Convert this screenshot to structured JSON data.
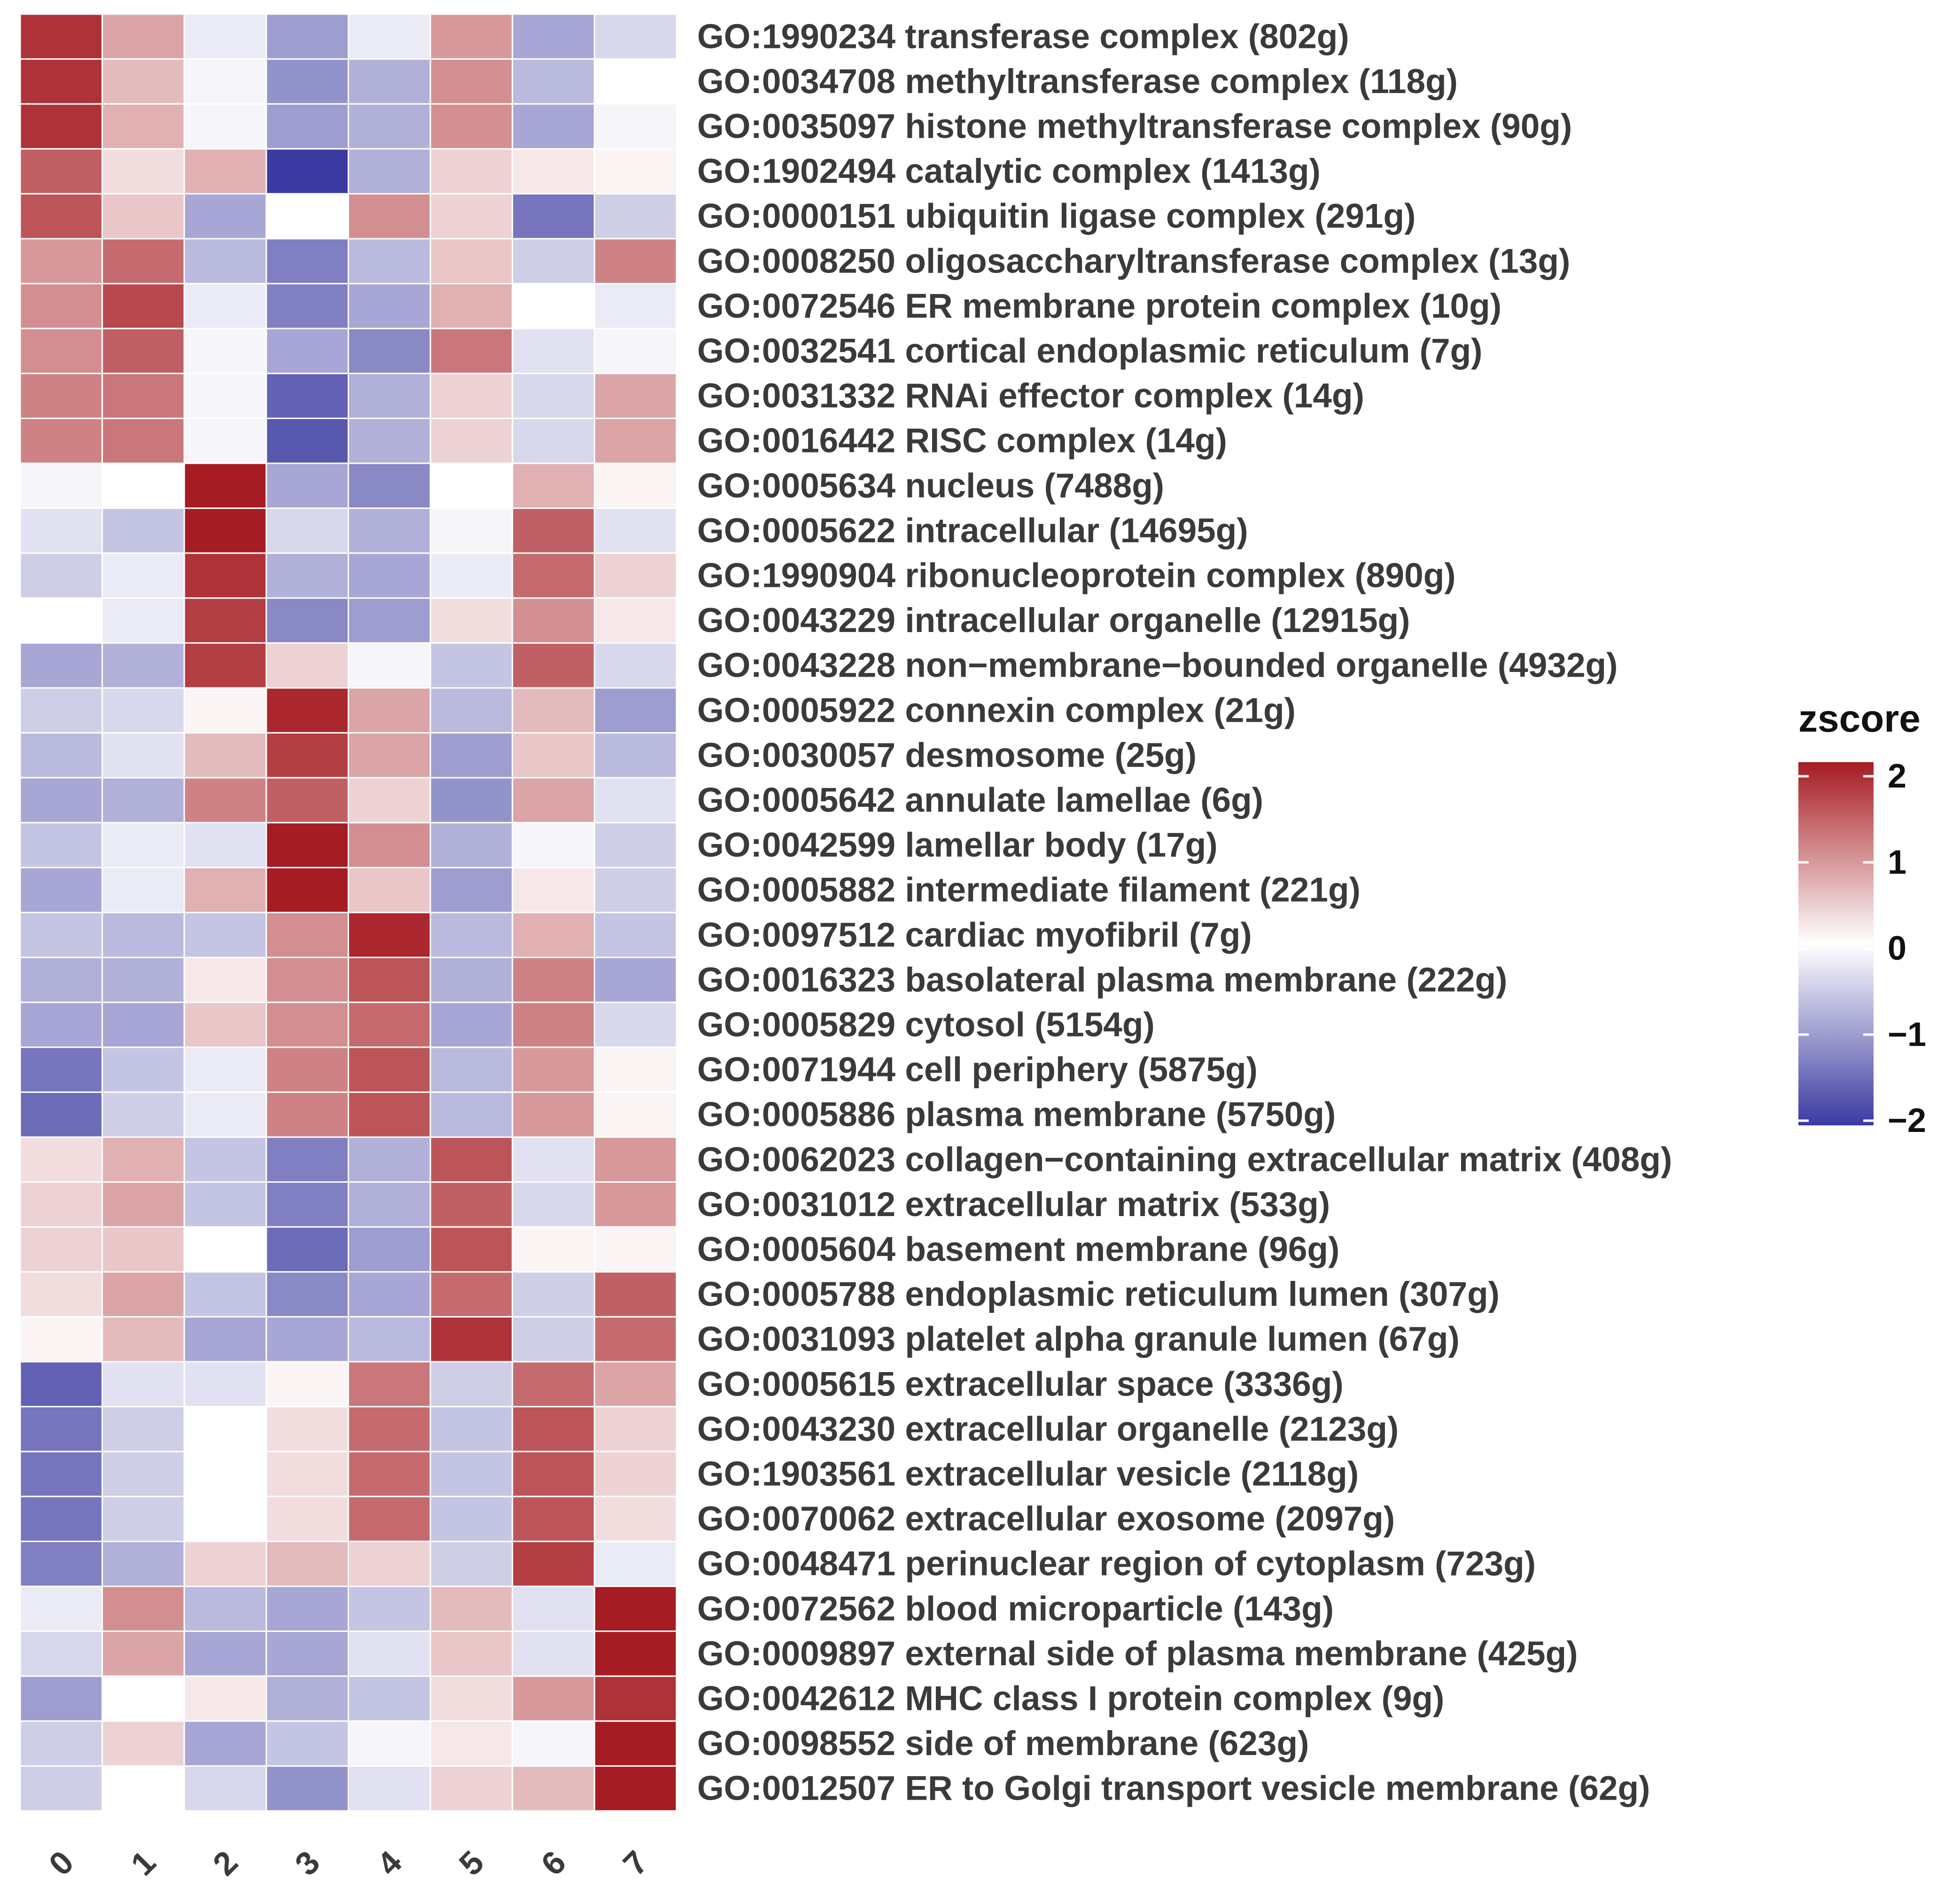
{
  "chart_data": {
    "type": "heatmap",
    "title": "",
    "columns": [
      "0",
      "1",
      "2",
      "3",
      "4",
      "5",
      "6",
      "7"
    ],
    "rows": [
      "GO:1990234 transferase complex (802g)",
      "GO:0034708 methyltransferase complex (118g)",
      "GO:0035097 histone methyltransferase complex (90g)",
      "GO:1902494 catalytic complex (1413g)",
      "GO:0000151 ubiquitin ligase complex (291g)",
      "GO:0008250 oligosaccharyltransferase complex (13g)",
      "GO:0072546 ER membrane protein complex (10g)",
      "GO:0032541 cortical endoplasmic reticulum (7g)",
      "GO:0031332 RNAi effector complex (14g)",
      "GO:0016442 RISC complex (14g)",
      "GO:0005634 nucleus (7488g)",
      "GO:0005622 intracellular (14695g)",
      "GO:1990904 ribonucleoprotein complex (890g)",
      "GO:0043229 intracellular organelle (12915g)",
      "GO:0043228 non−membrane−bounded organelle (4932g)",
      "GO:0005922 connexin complex (21g)",
      "GO:0030057 desmosome (25g)",
      "GO:0005642 annulate lamellae (6g)",
      "GO:0042599 lamellar body (17g)",
      "GO:0005882 intermediate filament (221g)",
      "GO:0097512 cardiac myofibril (7g)",
      "GO:0016323 basolateral plasma membrane (222g)",
      "GO:0005829 cytosol (5154g)",
      "GO:0071944 cell periphery (5875g)",
      "GO:0005886 plasma membrane (5750g)",
      "GO:0062023 collagen−containing extracellular matrix (408g)",
      "GO:0031012 extracellular matrix (533g)",
      "GO:0005604 basement membrane (96g)",
      "GO:0005788 endoplasmic reticulum lumen (307g)",
      "GO:0031093 platelet alpha granule lumen (67g)",
      "GO:0005615 extracellular space (3336g)",
      "GO:0043230 extracellular organelle (2123g)",
      "GO:1903561 extracellular vesicle (2118g)",
      "GO:0070062 extracellular exosome (2097g)",
      "GO:0048471 perinuclear region of cytoplasm (723g)",
      "GO:0072562 blood microparticle (143g)",
      "GO:0009897 external side of plasma membrane (425g)",
      "GO:0042612 MHC class I protein complex (9g)",
      "GO:0098552 side of membrane (623g)",
      "GO:0012507 ER to Golgi transport vesicle membrane (62g)"
    ],
    "values": [
      [
        1.8,
        0.8,
        -0.2,
        -1.0,
        -0.2,
        0.9,
        -0.9,
        -0.4
      ],
      [
        1.8,
        0.6,
        -0.1,
        -1.1,
        -0.8,
        1.0,
        -0.7,
        0.0
      ],
      [
        1.8,
        0.7,
        -0.1,
        -1.0,
        -0.8,
        1.0,
        -0.9,
        -0.1
      ],
      [
        1.4,
        0.3,
        0.7,
        -2.0,
        -0.8,
        0.4,
        0.2,
        0.1
      ],
      [
        1.5,
        0.5,
        -0.9,
        0.0,
        1.0,
        0.4,
        -1.4,
        -0.5
      ],
      [
        0.9,
        1.3,
        -0.7,
        -1.3,
        -0.7,
        0.5,
        -0.5,
        1.1
      ],
      [
        1.0,
        1.6,
        -0.2,
        -1.3,
        -0.9,
        0.7,
        0.0,
        -0.2
      ],
      [
        1.0,
        1.4,
        -0.1,
        -0.9,
        -1.2,
        1.2,
        -0.3,
        -0.1
      ],
      [
        1.1,
        1.2,
        -0.1,
        -1.6,
        -0.8,
        0.4,
        -0.4,
        0.8
      ],
      [
        1.1,
        1.2,
        -0.1,
        -1.7,
        -0.8,
        0.4,
        -0.4,
        0.8
      ],
      [
        -0.1,
        0.0,
        2.0,
        -0.9,
        -1.2,
        0.0,
        0.7,
        0.1
      ],
      [
        -0.3,
        -0.6,
        2.0,
        -0.4,
        -0.8,
        -0.1,
        1.4,
        -0.3
      ],
      [
        -0.5,
        -0.2,
        1.8,
        -0.8,
        -0.9,
        -0.2,
        1.3,
        0.4
      ],
      [
        0.0,
        -0.2,
        1.7,
        -1.2,
        -1.0,
        0.3,
        1.0,
        0.2
      ],
      [
        -0.9,
        -0.8,
        1.7,
        0.4,
        -0.1,
        -0.6,
        1.4,
        -0.4
      ],
      [
        -0.5,
        -0.4,
        0.1,
        1.9,
        0.8,
        -0.7,
        0.6,
        -1.0
      ],
      [
        -0.7,
        -0.3,
        0.6,
        1.7,
        0.8,
        -1.0,
        0.5,
        -0.7
      ],
      [
        -0.9,
        -0.8,
        1.1,
        1.4,
        0.4,
        -1.1,
        0.8,
        -0.3
      ],
      [
        -0.6,
        -0.2,
        -0.3,
        2.3,
        1.0,
        -0.8,
        -0.1,
        -0.5
      ],
      [
        -0.9,
        -0.2,
        0.7,
        2.0,
        0.5,
        -1.0,
        0.2,
        -0.5
      ],
      [
        -0.6,
        -0.7,
        -0.6,
        1.0,
        1.9,
        -0.7,
        0.7,
        -0.6
      ],
      [
        -0.8,
        -0.8,
        0.2,
        1.0,
        1.5,
        -0.8,
        1.1,
        -0.9
      ],
      [
        -0.9,
        -0.9,
        0.5,
        1.0,
        1.3,
        -0.9,
        1.1,
        -0.4
      ],
      [
        -1.4,
        -0.6,
        -0.2,
        1.1,
        1.5,
        -0.7,
        0.9,
        0.1
      ],
      [
        -1.5,
        -0.5,
        -0.2,
        1.1,
        1.5,
        -0.7,
        0.9,
        0.1
      ],
      [
        0.3,
        0.7,
        -0.6,
        -1.3,
        -0.8,
        1.5,
        -0.3,
        0.9
      ],
      [
        0.4,
        0.8,
        -0.6,
        -1.3,
        -0.8,
        1.4,
        -0.4,
        0.9
      ],
      [
        0.4,
        0.5,
        0.0,
        -1.5,
        -1.0,
        1.5,
        0.1,
        0.1
      ],
      [
        0.3,
        0.8,
        -0.6,
        -1.2,
        -0.9,
        1.3,
        -0.5,
        1.4
      ],
      [
        0.1,
        0.6,
        -0.9,
        -0.9,
        -0.7,
        1.8,
        -0.5,
        1.3
      ],
      [
        -1.6,
        -0.3,
        -0.3,
        0.1,
        1.2,
        -0.5,
        1.3,
        0.8
      ],
      [
        -1.4,
        -0.5,
        0.0,
        0.3,
        1.3,
        -0.6,
        1.5,
        0.4
      ],
      [
        -1.4,
        -0.5,
        0.0,
        0.3,
        1.3,
        -0.6,
        1.5,
        0.4
      ],
      [
        -1.4,
        -0.5,
        0.0,
        0.3,
        1.3,
        -0.6,
        1.5,
        0.3
      ],
      [
        -1.3,
        -0.8,
        0.4,
        0.6,
        0.4,
        -0.5,
        1.7,
        -0.2
      ],
      [
        -0.2,
        1.0,
        -0.7,
        -0.9,
        -0.6,
        0.6,
        -0.3,
        2.0
      ],
      [
        -0.4,
        0.8,
        -0.9,
        -0.9,
        -0.3,
        0.5,
        -0.3,
        2.2
      ],
      [
        -1.0,
        0.0,
        0.2,
        -0.8,
        -0.6,
        0.3,
        0.9,
        1.8
      ],
      [
        -0.5,
        0.4,
        -0.9,
        -0.6,
        -0.1,
        0.2,
        -0.1,
        2.4
      ],
      [
        -0.5,
        0.0,
        -0.4,
        -1.1,
        -0.3,
        0.4,
        0.6,
        2.2
      ]
    ],
    "color_scale": {
      "title": "zscore",
      "min": -2,
      "max": 2,
      "ticks": [
        2,
        1,
        0,
        -1,
        -2
      ],
      "tick_labels": [
        "2",
        "1",
        "0",
        "−1",
        "−2"
      ],
      "low_color": "#3b3aa0",
      "mid_color": "#ffffff",
      "high_color": "#a51c22"
    },
    "legend_position": "right",
    "grid": true
  }
}
